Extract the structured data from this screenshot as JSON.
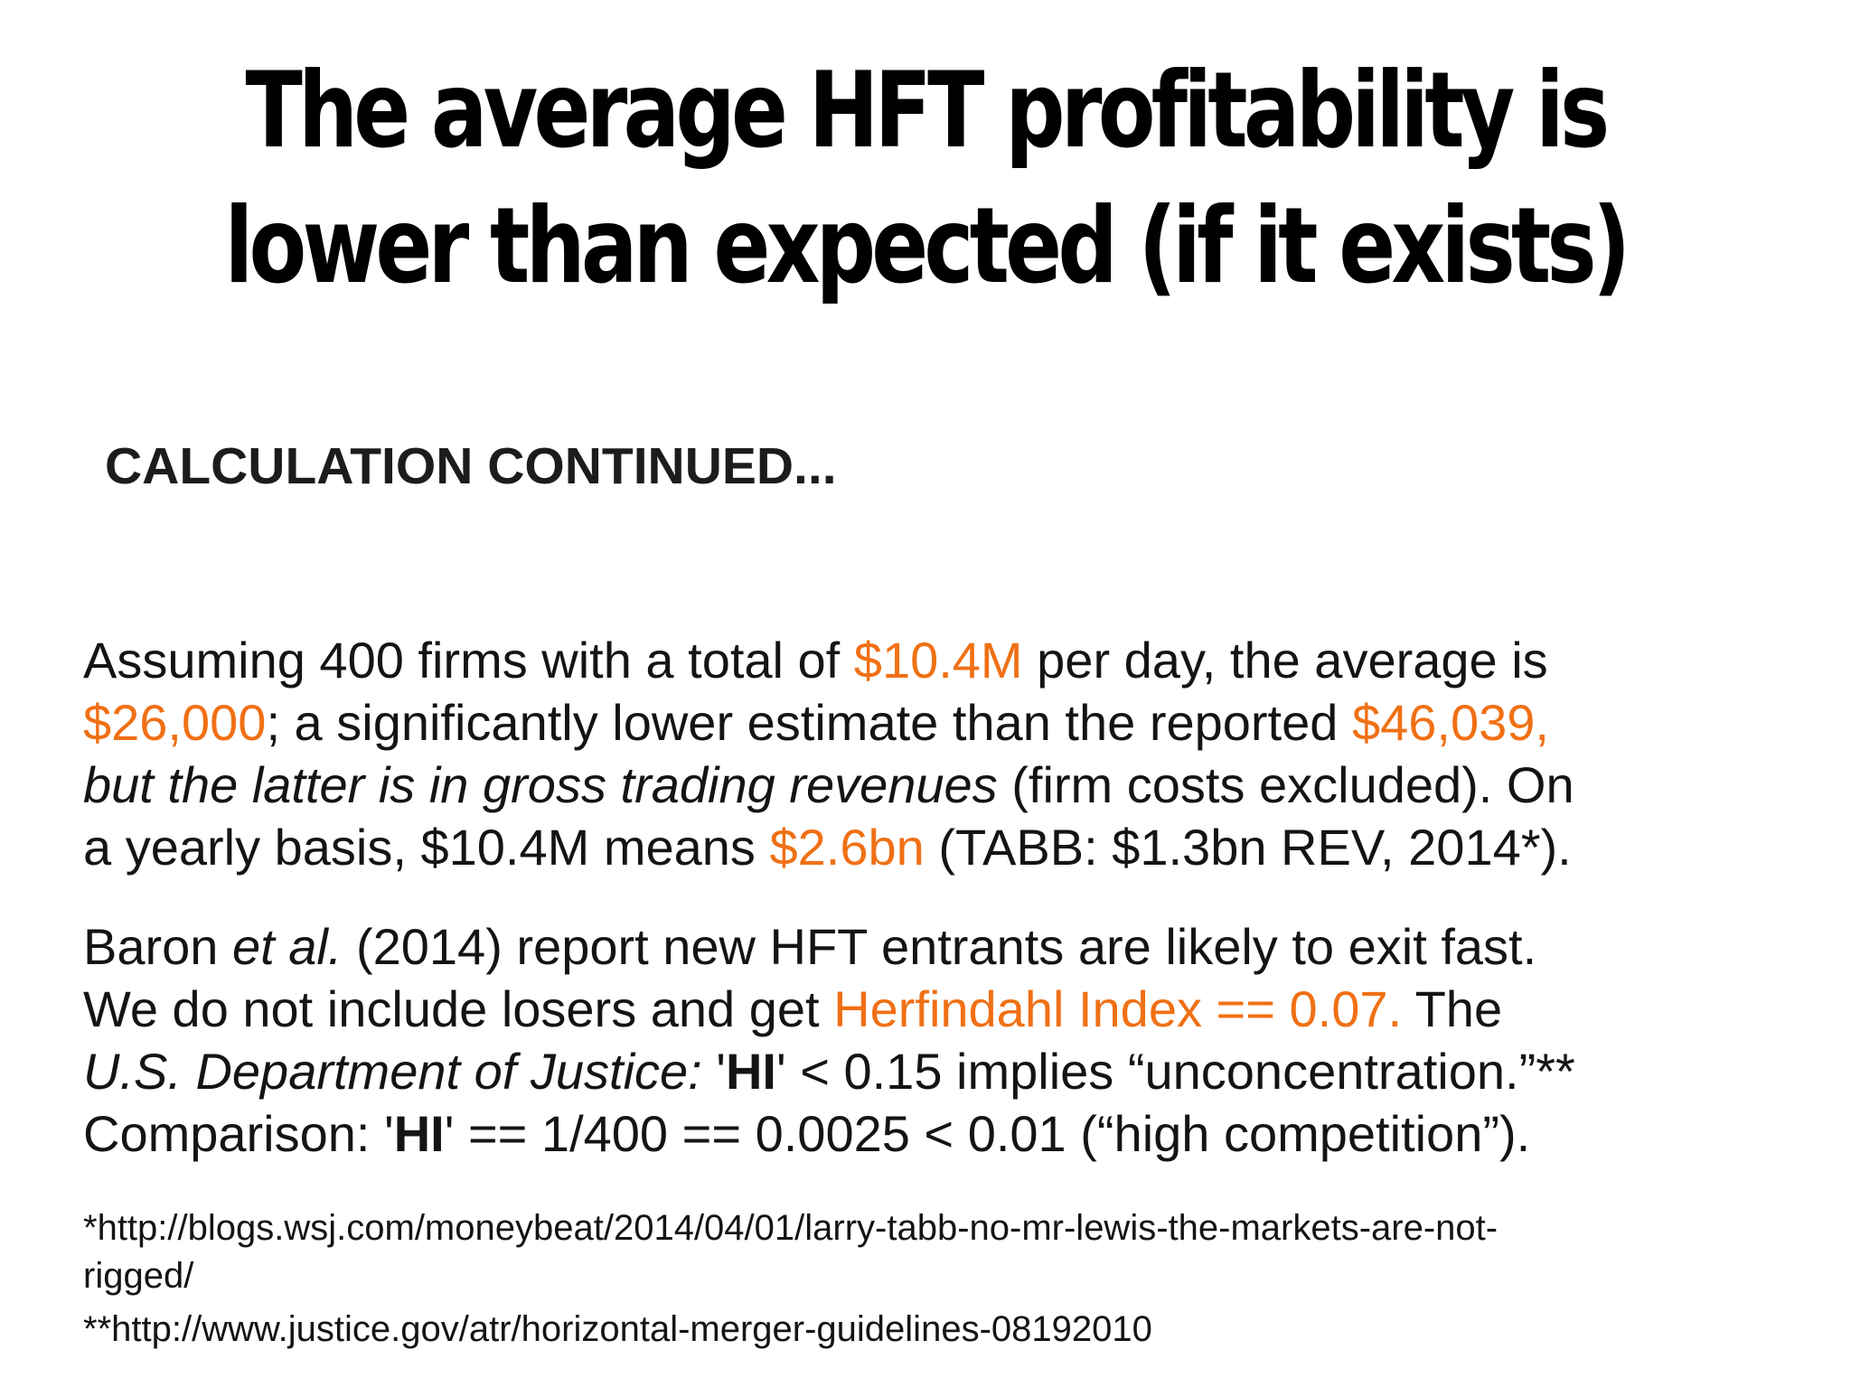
{
  "slide": {
    "title_line1": "The average HFT profitability is",
    "title_line2": "lower than expected (if it exists)",
    "subtitle": "CALCULATION CONTINUED...",
    "paragraph1": {
      "l1_a": "Assuming 400 firms with a total of ",
      "l1_b": "$10.4M",
      "l1_c": " per day, the average is",
      "l2_a": "$26,000",
      "l2_b": "; a significantly lower estimate than the reported ",
      "l2_c": "$46,039,",
      "l3_a": "but the latter is in gross trading revenues",
      "l3_b": " (firm costs excluded). On",
      "l4_a": "a yearly basis, $10.4M means ",
      "l4_b": "$2.6bn",
      "l4_c": " (TABB: $1.3bn REV, 2014*)."
    },
    "paragraph2": {
      "l1_a": "Baron ",
      "l1_b": "et al.",
      "l1_c": " (2014) report new HFT entrants are likely to exit fast.",
      "l2_a": "We do not include losers and get ",
      "l2_b": "Herfindahl Index == 0.07.",
      "l2_c": " The",
      "l3_a": "U.S. Department of Justice:",
      "l3_b": " '",
      "l3_c": "HI",
      "l3_d": "' < 0.15 implies “unconcentration.”**",
      "l4_a": "Comparison: '",
      "l4_b": "HI",
      "l4_c": "' == 1/400 == 0.0025 < 0.01 (“high competition”)."
    },
    "references": {
      "ref1_line1": "*http://blogs.wsj.com/moneybeat/2014/04/01/larry-tabb-no-mr-lewis-the-markets-are-not-",
      "ref1_line2": "rigged/",
      "ref2": "**http://www.justice.gov/atr/horizontal-merger-guidelines-08192010"
    },
    "colors": {
      "highlight": "#f07015",
      "text": "#141414",
      "background": "#ffffff"
    }
  }
}
